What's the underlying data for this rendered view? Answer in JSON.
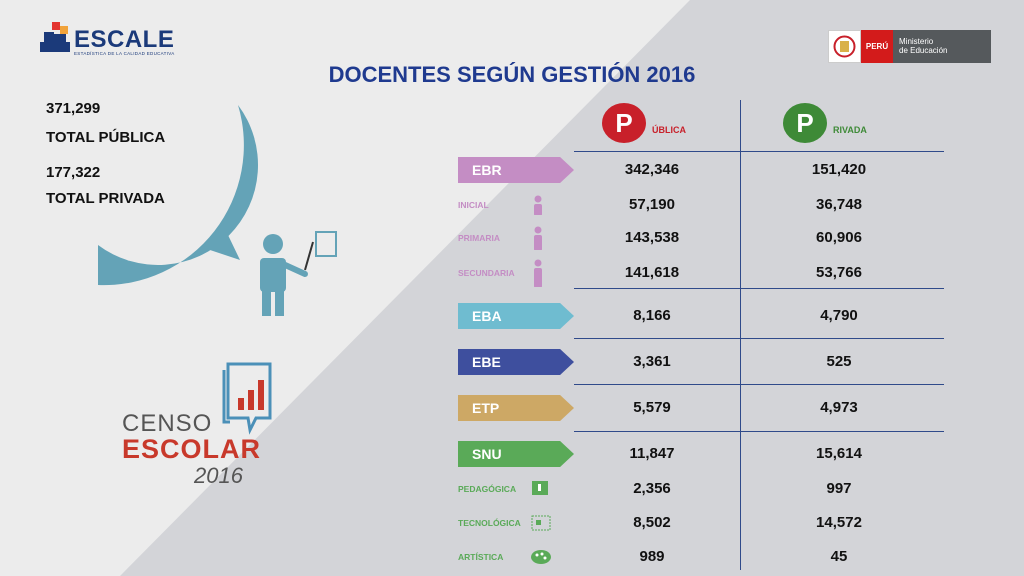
{
  "logo": {
    "name": "ESCALE",
    "tagline": "ESTADÍSTICA DE LA CALIDAD EDUCATIVA"
  },
  "ministry": {
    "country": "PERÚ",
    "line1": "Ministerio",
    "line2": "de Educación"
  },
  "title": "DOCENTES SEGÚN GESTIÓN 2016",
  "totals": {
    "public_value": "371,299",
    "public_label": "TOTAL PÚBLICA",
    "private_value": "177,322",
    "private_label": "TOTAL PRIVADA"
  },
  "headers": {
    "public": {
      "letter": "P",
      "suffix": "ÚBLICA"
    },
    "private": {
      "letter": "P",
      "suffix": "RIVADA"
    }
  },
  "groups": [
    {
      "label": "EBR",
      "color": "#c48dc4",
      "public": "342,346",
      "private": "151,420",
      "subs": [
        {
          "label": "INICIAL",
          "public": "57,190",
          "private": "36,748"
        },
        {
          "label": "PRIMARIA",
          "public": "143,538",
          "private": "60,906"
        },
        {
          "label": "SECUNDARIA",
          "public": "141,618",
          "private": "53,766"
        }
      ]
    },
    {
      "label": "EBA",
      "color": "#6fbcd0",
      "public": "8,166",
      "private": "4,790",
      "subs": []
    },
    {
      "label": "EBE",
      "color": "#3e4f9e",
      "public": "3,361",
      "private": "525",
      "subs": []
    },
    {
      "label": "ETP",
      "color": "#cda865",
      "public": "5,579",
      "private": "4,973",
      "subs": []
    },
    {
      "label": "SNU",
      "color": "#5aaa58",
      "public": "11,847",
      "private": "15,614",
      "subs": [
        {
          "label": "PEDAGÓGICA",
          "public": "2,356",
          "private": "997"
        },
        {
          "label": "TECNOLÓGICA",
          "public": "8,502",
          "private": "14,572"
        },
        {
          "label": "ARTÍSTICA",
          "public": "989",
          "private": "45"
        }
      ]
    }
  ],
  "censo": {
    "line1": "CENSO",
    "line2": "ESCOLAR",
    "line3": "2016"
  },
  "colors": {
    "public_badge": "#c8202a",
    "private_badge": "#3e8a37",
    "title": "#1f3a8f",
    "donut": "#64a3b7",
    "figure": "#64a3b7"
  }
}
